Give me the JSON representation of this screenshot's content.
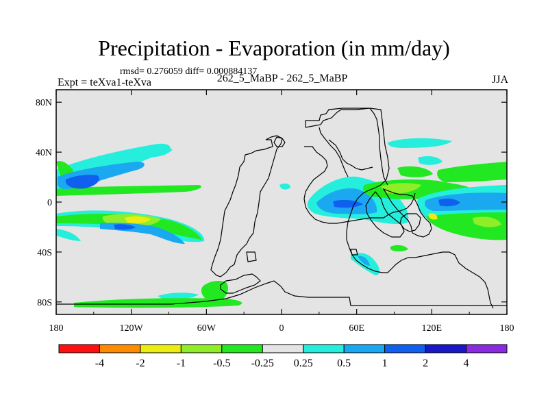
{
  "title": "Precipitation - Evaporation (in mm/day)",
  "stats_line": "rmsd= 0.276059 diff= 0.000884137",
  "experiment_label": "Expt = teXva1-teXva",
  "case_label": "262_5_MaBP - 262_5_MaBP",
  "season_label": "JJA",
  "chart_data": {
    "type": "heatmap",
    "map": "global lat-lon filled contour with continent outlines",
    "x_ticks": [
      "180",
      "120W",
      "60W",
      "0",
      "60E",
      "120E",
      "180"
    ],
    "y_ticks": [
      "80N",
      "40N",
      "0",
      "40S",
      "80S"
    ],
    "x_range": [
      -180,
      180
    ],
    "y_range": [
      -90,
      90
    ],
    "background_value": "between -0.25 and 0.25",
    "colorbar": {
      "labels": [
        "-4",
        "-2",
        "-1",
        "-0.5",
        "-0.25",
        "0.25",
        "0.5",
        "1",
        "2",
        "4"
      ],
      "colors": [
        "#ff1010",
        "#ff8c00",
        "#ecec10",
        "#90ee28",
        "#22e822",
        "#e4e4e4",
        "#26eedc",
        "#1aa8f0",
        "#1060f0",
        "#1818c8",
        "#8a2be2"
      ]
    },
    "features": [
      {
        "region": "North Pacific band near 15N",
        "level": "+2",
        "color": "#1060f0"
      },
      {
        "region": "South Pacific band near 20S",
        "level": "-1",
        "color": "#ecec10"
      },
      {
        "region": "Equatorial Africa near 5N",
        "level": "+1",
        "color": "#1aa8f0"
      },
      {
        "region": "West Pacific near 0",
        "level": "+1",
        "color": "#1aa8f0"
      },
      {
        "region": "Antarctic coast near 75S",
        "level": "-0.5",
        "color": "#22e822"
      }
    ]
  }
}
